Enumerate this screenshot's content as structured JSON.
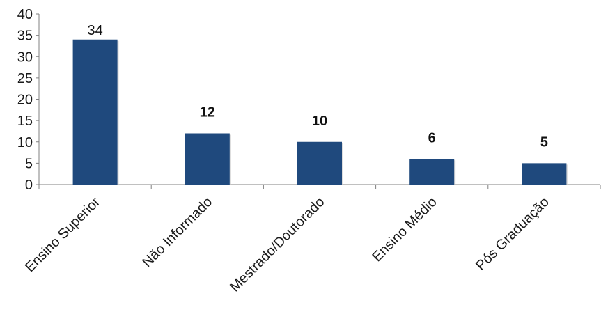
{
  "chart_data": {
    "type": "bar",
    "categories": [
      "Ensino Superior",
      "Não Informado",
      "Mestrado/Doutorado",
      "Ensino Médio",
      "Pós Graduação"
    ],
    "values": [
      34,
      12,
      10,
      6,
      5
    ],
    "data_labels": [
      "34",
      "12",
      "10",
      "6",
      "5"
    ],
    "title": "",
    "xlabel": "",
    "ylabel": "",
    "ylim": [
      0,
      40
    ],
    "yticks": [
      0,
      5,
      10,
      15,
      20,
      25,
      30,
      35,
      40
    ],
    "grid": false,
    "legend": "none",
    "bar_color": "#1f497d",
    "axis_color": "#808080"
  }
}
